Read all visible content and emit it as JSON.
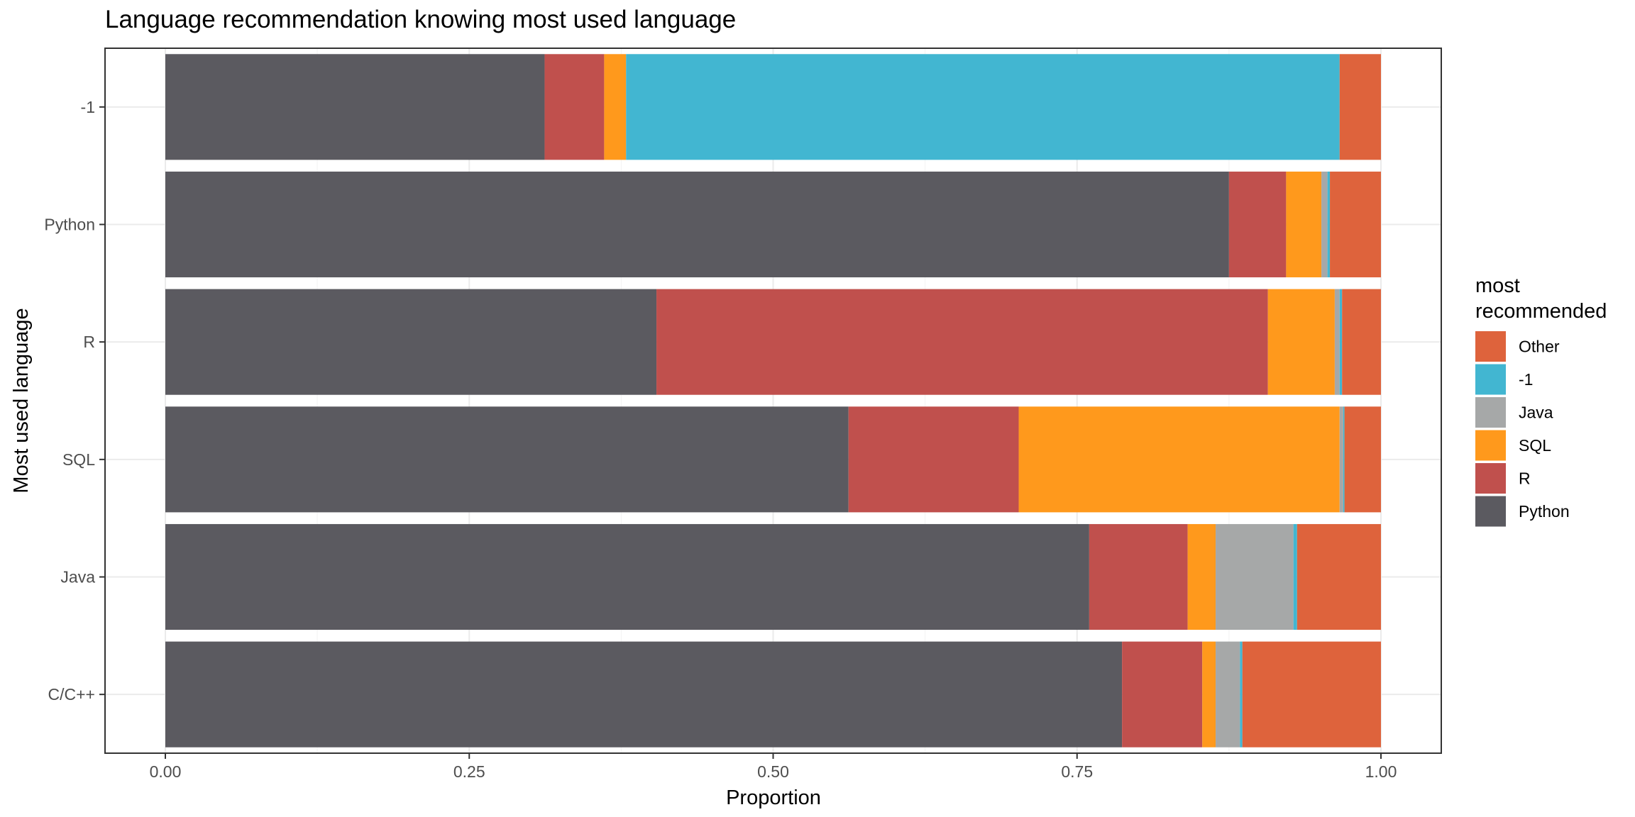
{
  "chart_data": {
    "type": "bar",
    "orientation": "horizontal",
    "stacked": true,
    "title": "Language recommendation knowing most used language",
    "xlabel": "Proportion",
    "ylabel": "Most used language",
    "xlim": [
      0,
      1
    ],
    "x_ticks": [
      "0.00",
      "0.25",
      "0.50",
      "0.75",
      "1.00"
    ],
    "x_tick_values": [
      0,
      0.25,
      0.5,
      0.75,
      1.0
    ],
    "grid": true,
    "legend": {
      "title": "most recommended",
      "title_lines": [
        "most",
        "recommended"
      ],
      "position": "right"
    },
    "categories": [
      "-1",
      "Python",
      "R",
      "SQL",
      "Java",
      "C/C++"
    ],
    "series": [
      {
        "name": "Python",
        "color": "#5B5A60",
        "values": [
          0.312,
          0.875,
          0.404,
          0.562,
          0.76,
          0.787
        ]
      },
      {
        "name": "R",
        "color": "#C0504D",
        "values": [
          0.049,
          0.047,
          0.503,
          0.14,
          0.081,
          0.066
        ]
      },
      {
        "name": "SQL",
        "color": "#FF991C",
        "values": [
          0.018,
          0.029,
          0.055,
          0.264,
          0.023,
          0.011
        ]
      },
      {
        "name": "Java",
        "color": "#A6A8A8",
        "values": [
          0.0,
          0.005,
          0.004,
          0.003,
          0.064,
          0.02
        ]
      },
      {
        "name": "-1",
        "color": "#42B6D1",
        "values": [
          0.587,
          0.002,
          0.002,
          0.001,
          0.003,
          0.002
        ]
      },
      {
        "name": "Other",
        "color": "#DE633C",
        "values": [
          0.034,
          0.042,
          0.032,
          0.03,
          0.069,
          0.114
        ]
      }
    ],
    "legend_order": [
      "Other",
      "-1",
      "Java",
      "SQL",
      "R",
      "Python"
    ]
  }
}
